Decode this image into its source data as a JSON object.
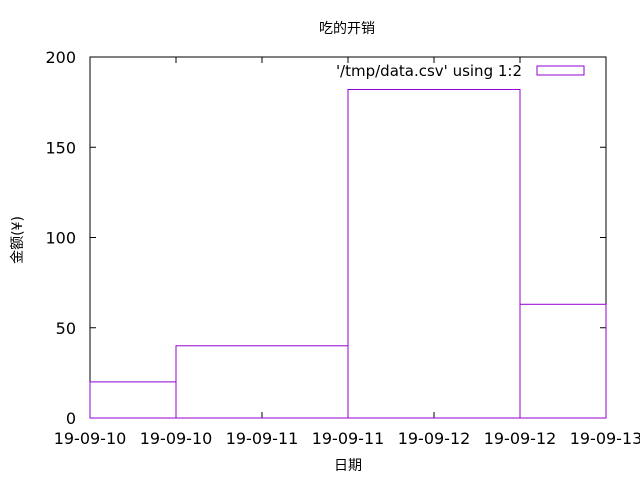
{
  "chart_data": {
    "type": "bar",
    "title": "吃的开销",
    "xlabel": "日期",
    "ylabel": "金额(¥)",
    "legend": {
      "label": "'/tmp/data.csv' using 1:2",
      "placement": "top-right"
    },
    "x_tick_labels": [
      "19-09-10",
      "19-09-10",
      "19-09-11",
      "19-09-11",
      "19-09-12",
      "19-09-12",
      "19-09-13"
    ],
    "y_ticks": [
      0,
      50,
      100,
      150,
      200
    ],
    "ylim": [
      0,
      200
    ],
    "xlim": [
      0,
      3
    ],
    "bars": [
      {
        "x_start": 0.0,
        "x_end": 0.5,
        "value": 20
      },
      {
        "x_start": 0.5,
        "x_end": 1.5,
        "value": 40
      },
      {
        "x_start": 1.5,
        "x_end": 2.5,
        "value": 182
      },
      {
        "x_start": 2.5,
        "x_end": 3.0,
        "value": 63
      }
    ],
    "colors": {
      "series": "#9400d3",
      "axis": "#000000"
    },
    "grid": false
  }
}
